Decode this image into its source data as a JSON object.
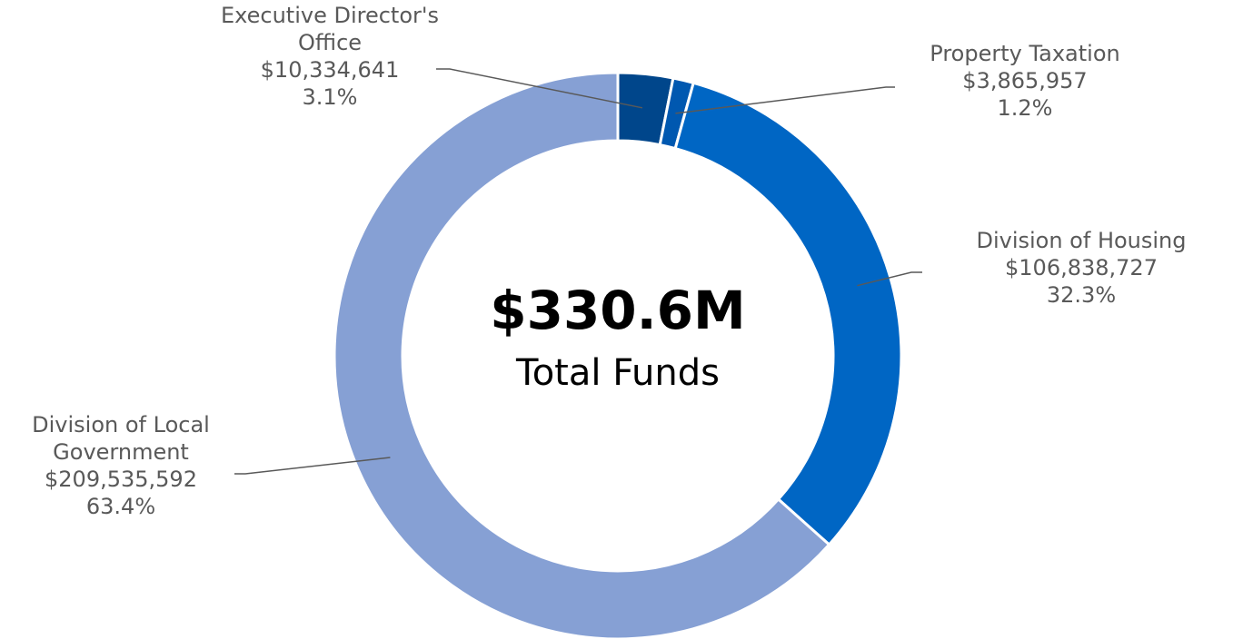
{
  "chart_data": {
    "type": "donut",
    "categories": [
      "Executive Director's Office",
      "Property Taxation",
      "Division of Housing",
      "Division of Local Government"
    ],
    "values": [
      10334641,
      3865957,
      106838727,
      209535592
    ],
    "value_labels": [
      "$10,334,641",
      "$3,865,957",
      "$106,838,727",
      "$209,535,592"
    ],
    "percent_labels": [
      "3.1%",
      "1.2%",
      "32.3%",
      "63.4%"
    ],
    "colors": [
      "#00468b",
      "#0058b0",
      "#0066c4",
      "#86a0d4"
    ],
    "center_title": "$330.6M",
    "center_subtitle": "Total Funds"
  }
}
